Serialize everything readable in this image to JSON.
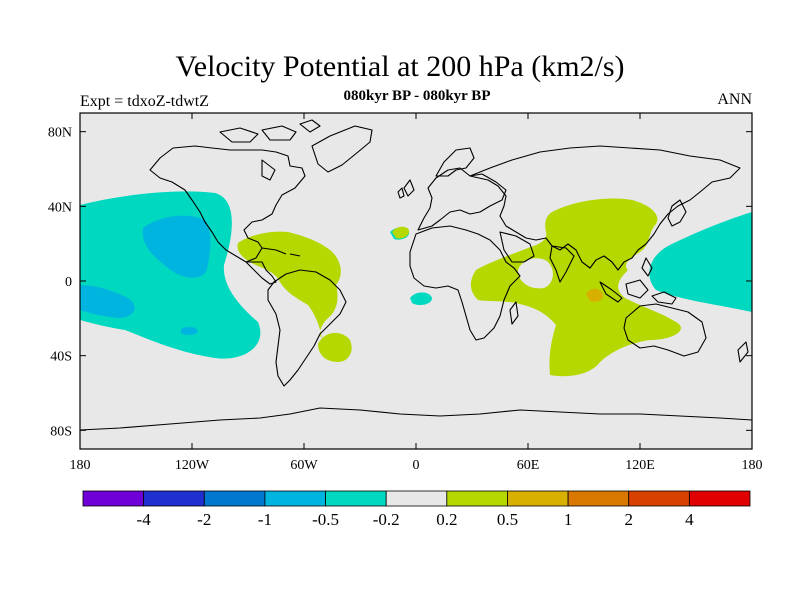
{
  "header": {
    "title": "Velocity Potential at 200 hPa (km2/s)",
    "subtitle": "080kyr BP - 080kyr BP",
    "left_label": "Expt = tdxoZ-tdwtZ",
    "right_label": "ANN"
  },
  "map": {
    "projection": "cylindrical-equidistant",
    "lon_range": [
      -180,
      180
    ],
    "lat_range": [
      -90,
      90
    ],
    "background_color": "#e8e8e8",
    "x_ticks": [
      {
        "lon": -180,
        "label": "180"
      },
      {
        "lon": -120,
        "label": "120W"
      },
      {
        "lon": -60,
        "label": "60W"
      },
      {
        "lon": 0,
        "label": "0"
      },
      {
        "lon": 60,
        "label": "60E"
      },
      {
        "lon": 120,
        "label": "120E"
      },
      {
        "lon": 180,
        "label": "180"
      }
    ],
    "y_ticks": [
      {
        "lat": 80,
        "label": "80N"
      },
      {
        "lat": 40,
        "label": "40N"
      },
      {
        "lat": 0,
        "label": "0"
      },
      {
        "lat": -40,
        "label": "40S"
      },
      {
        "lat": -80,
        "label": "80S"
      }
    ]
  },
  "colorbar": {
    "colors": [
      "#7000d8",
      "#2030d0",
      "#0078d0",
      "#00b4e0",
      "#00d8c0",
      "#e8e8e8",
      "#b4d800",
      "#d8b000",
      "#d87800",
      "#d84000",
      "#e00000"
    ],
    "labels": [
      "-4",
      "-2",
      "-1",
      "-0.5",
      "-0.2",
      "0.2",
      "0.5",
      "1",
      "2",
      "4"
    ]
  }
}
